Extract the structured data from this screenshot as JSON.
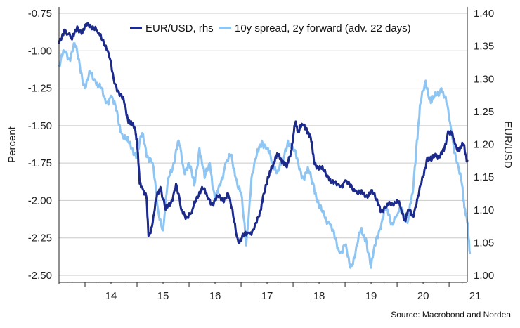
{
  "chart_data": {
    "type": "line",
    "legend_position": "top-center",
    "grid": "horizontal",
    "x_ticks": [
      "14",
      "15",
      "16",
      "17",
      "18",
      "19",
      "20",
      "21"
    ],
    "x_range": [
      2013.5,
      2021.35
    ],
    "y_left": {
      "label": "Percent",
      "range": [
        -2.5,
        -0.75
      ],
      "ticks": [
        "-0.75",
        "-1.00",
        "-1.25",
        "-1.50",
        "-1.75",
        "-2.00",
        "-2.25",
        "-2.50"
      ]
    },
    "y_right": {
      "label": "EUR/USD",
      "range": [
        1.0,
        1.4
      ],
      "ticks": [
        "1.40",
        "1.35",
        "1.30",
        "1.25",
        "1.20",
        "1.15",
        "1.10",
        "1.05",
        "1.00"
      ]
    },
    "source": "Source: Macrobond and Nordea",
    "series": [
      {
        "name": "EUR/USD, rhs",
        "axis": "right",
        "color": "#1c2a8c",
        "points": [
          [
            2013.5,
            1.355
          ],
          [
            2013.6,
            1.375
          ],
          [
            2013.75,
            1.36
          ],
          [
            2013.85,
            1.38
          ],
          [
            2013.95,
            1.37
          ],
          [
            2014.05,
            1.385
          ],
          [
            2014.15,
            1.38
          ],
          [
            2014.25,
            1.37
          ],
          [
            2014.35,
            1.36
          ],
          [
            2014.45,
            1.34
          ],
          [
            2014.55,
            1.3
          ],
          [
            2014.65,
            1.28
          ],
          [
            2014.75,
            1.265
          ],
          [
            2014.82,
            1.24
          ],
          [
            2014.9,
            1.23
          ],
          [
            2014.97,
            1.22
          ],
          [
            2015.0,
            1.205
          ],
          [
            2015.05,
            1.14
          ],
          [
            2015.1,
            1.135
          ],
          [
            2015.18,
            1.12
          ],
          [
            2015.22,
            1.06
          ],
          [
            2015.3,
            1.08
          ],
          [
            2015.38,
            1.12
          ],
          [
            2015.45,
            1.135
          ],
          [
            2015.55,
            1.1
          ],
          [
            2015.65,
            1.11
          ],
          [
            2015.75,
            1.14
          ],
          [
            2015.85,
            1.1
          ],
          [
            2015.95,
            1.09
          ],
          [
            2016.05,
            1.095
          ],
          [
            2016.15,
            1.12
          ],
          [
            2016.25,
            1.135
          ],
          [
            2016.35,
            1.12
          ],
          [
            2016.45,
            1.11
          ],
          [
            2016.55,
            1.12
          ],
          [
            2016.65,
            1.115
          ],
          [
            2016.75,
            1.125
          ],
          [
            2016.85,
            1.09
          ],
          [
            2016.95,
            1.05
          ],
          [
            2017.05,
            1.06
          ],
          [
            2017.15,
            1.065
          ],
          [
            2017.25,
            1.07
          ],
          [
            2017.35,
            1.09
          ],
          [
            2017.42,
            1.12
          ],
          [
            2017.5,
            1.14
          ],
          [
            2017.58,
            1.165
          ],
          [
            2017.65,
            1.175
          ],
          [
            2017.72,
            1.185
          ],
          [
            2017.8,
            1.175
          ],
          [
            2017.88,
            1.165
          ],
          [
            2017.96,
            1.19
          ],
          [
            2018.0,
            1.21
          ],
          [
            2018.05,
            1.235
          ],
          [
            2018.1,
            1.22
          ],
          [
            2018.18,
            1.23
          ],
          [
            2018.26,
            1.225
          ],
          [
            2018.34,
            1.21
          ],
          [
            2018.4,
            1.175
          ],
          [
            2018.48,
            1.165
          ],
          [
            2018.58,
            1.16
          ],
          [
            2018.68,
            1.15
          ],
          [
            2018.78,
            1.14
          ],
          [
            2018.9,
            1.135
          ],
          [
            2019.0,
            1.145
          ],
          [
            2019.1,
            1.135
          ],
          [
            2019.2,
            1.13
          ],
          [
            2019.3,
            1.125
          ],
          [
            2019.4,
            1.12
          ],
          [
            2019.5,
            1.13
          ],
          [
            2019.6,
            1.115
          ],
          [
            2019.7,
            1.1
          ],
          [
            2019.8,
            1.105
          ],
          [
            2019.9,
            1.11
          ],
          [
            2020.0,
            1.115
          ],
          [
            2020.08,
            1.1
          ],
          [
            2020.15,
            1.085
          ],
          [
            2020.22,
            1.1
          ],
          [
            2020.3,
            1.09
          ],
          [
            2020.4,
            1.12
          ],
          [
            2020.5,
            1.15
          ],
          [
            2020.58,
            1.18
          ],
          [
            2020.66,
            1.175
          ],
          [
            2020.75,
            1.185
          ],
          [
            2020.82,
            1.18
          ],
          [
            2020.9,
            1.19
          ],
          [
            2020.98,
            1.22
          ],
          [
            2021.05,
            1.215
          ],
          [
            2021.12,
            1.2
          ],
          [
            2021.2,
            1.19
          ],
          [
            2021.28,
            1.2
          ],
          [
            2021.35,
            1.175
          ]
        ]
      },
      {
        "name": "10y spread, 2y forward (adv. 22 days)",
        "axis": "left",
        "color": "#8ec5f2",
        "points": [
          [
            2013.5,
            -1.1
          ],
          [
            2013.6,
            -1.0
          ],
          [
            2013.7,
            -1.05
          ],
          [
            2013.8,
            -0.95
          ],
          [
            2013.9,
            -1.1
          ],
          [
            2014.0,
            -1.25
          ],
          [
            2014.1,
            -1.15
          ],
          [
            2014.2,
            -1.2
          ],
          [
            2014.3,
            -1.25
          ],
          [
            2014.4,
            -1.35
          ],
          [
            2014.5,
            -1.3
          ],
          [
            2014.6,
            -1.4
          ],
          [
            2014.7,
            -1.55
          ],
          [
            2014.8,
            -1.6
          ],
          [
            2014.9,
            -1.65
          ],
          [
            2015.0,
            -1.7
          ],
          [
            2015.1,
            -1.55
          ],
          [
            2015.2,
            -1.7
          ],
          [
            2015.3,
            -1.75
          ],
          [
            2015.4,
            -2.05
          ],
          [
            2015.5,
            -2.2
          ],
          [
            2015.6,
            -1.85
          ],
          [
            2015.7,
            -1.75
          ],
          [
            2015.8,
            -1.6
          ],
          [
            2015.9,
            -1.8
          ],
          [
            2016.0,
            -1.75
          ],
          [
            2016.1,
            -1.9
          ],
          [
            2016.2,
            -1.65
          ],
          [
            2016.3,
            -1.85
          ],
          [
            2016.4,
            -1.75
          ],
          [
            2016.5,
            -2.0
          ],
          [
            2016.6,
            -1.9
          ],
          [
            2016.7,
            -1.75
          ],
          [
            2016.8,
            -1.7
          ],
          [
            2016.9,
            -1.85
          ],
          [
            2017.0,
            -1.95
          ],
          [
            2017.1,
            -2.3
          ],
          [
            2017.2,
            -1.85
          ],
          [
            2017.3,
            -1.7
          ],
          [
            2017.4,
            -1.6
          ],
          [
            2017.5,
            -1.65
          ],
          [
            2017.6,
            -1.75
          ],
          [
            2017.7,
            -1.8
          ],
          [
            2017.8,
            -1.75
          ],
          [
            2017.9,
            -1.6
          ],
          [
            2018.0,
            -1.65
          ],
          [
            2018.1,
            -1.75
          ],
          [
            2018.2,
            -1.85
          ],
          [
            2018.3,
            -1.8
          ],
          [
            2018.4,
            -1.9
          ],
          [
            2018.5,
            -2.05
          ],
          [
            2018.6,
            -2.1
          ],
          [
            2018.7,
            -2.15
          ],
          [
            2018.8,
            -2.25
          ],
          [
            2018.9,
            -2.35
          ],
          [
            2019.0,
            -2.3
          ],
          [
            2019.1,
            -2.45
          ],
          [
            2019.2,
            -2.35
          ],
          [
            2019.3,
            -2.2
          ],
          [
            2019.4,
            -2.25
          ],
          [
            2019.5,
            -2.45
          ],
          [
            2019.6,
            -2.25
          ],
          [
            2019.7,
            -2.15
          ],
          [
            2019.8,
            -2.05
          ],
          [
            2019.9,
            -2.15
          ],
          [
            2020.0,
            -2.1
          ],
          [
            2020.1,
            -2.05
          ],
          [
            2020.2,
            -2.15
          ],
          [
            2020.3,
            -1.95
          ],
          [
            2020.38,
            -1.6
          ],
          [
            2020.45,
            -1.35
          ],
          [
            2020.55,
            -1.2
          ],
          [
            2020.65,
            -1.35
          ],
          [
            2020.75,
            -1.3
          ],
          [
            2020.85,
            -1.25
          ],
          [
            2020.95,
            -1.35
          ],
          [
            2021.05,
            -1.55
          ],
          [
            2021.15,
            -1.75
          ],
          [
            2021.25,
            -1.9
          ],
          [
            2021.3,
            -2.05
          ],
          [
            2021.35,
            -2.15
          ],
          [
            2021.4,
            -2.35
          ]
        ]
      }
    ]
  }
}
